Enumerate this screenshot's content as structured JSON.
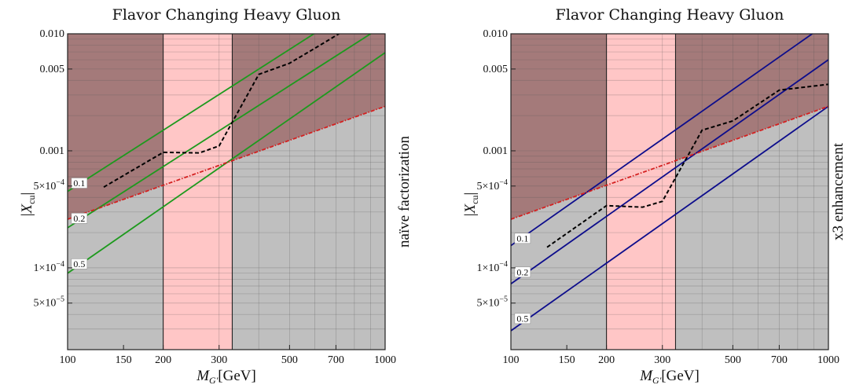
{
  "chart_data": [
    {
      "type": "line",
      "title": "Flavor Changing Heavy Gluon",
      "xlabel": "M_G'[GeV]",
      "ylabel": "|X_cu|",
      "side_label": "naïve factorization",
      "xscale": "log",
      "yscale": "log",
      "xlim": [
        100,
        1000
      ],
      "ylim": [
        2e-05,
        0.01
      ],
      "grid": true,
      "x_ticks": [
        {
          "value": 100,
          "label": "100"
        },
        {
          "value": 150,
          "label": "150"
        },
        {
          "value": 200,
          "label": "200"
        },
        {
          "value": 300,
          "label": "300"
        },
        {
          "value": 500,
          "label": "500"
        },
        {
          "value": 700,
          "label": "700"
        },
        {
          "value": 1000,
          "label": "1000"
        }
      ],
      "y_ticks": [
        {
          "value": 5e-05,
          "base": "5×10",
          "exp": "−5"
        },
        {
          "value": 0.0001,
          "base": "1×10",
          "exp": "−4"
        },
        {
          "value": 0.0005,
          "base": "5×10",
          "exp": "−4"
        },
        {
          "value": 0.001,
          "base": "0.001",
          "exp": ""
        },
        {
          "value": 0.005,
          "base": "0.005",
          "exp": ""
        },
        {
          "value": 0.01,
          "base": "0.010",
          "exp": ""
        }
      ],
      "excluded_above_line": {
        "x": [
          100,
          1000
        ],
        "y": [
          0.00026,
          0.0024
        ],
        "color": "#a47a7a"
      },
      "vertical_band": {
        "x": [
          200,
          330
        ],
        "color": "#ffc6c6"
      },
      "grey_regions": {
        "x_left": 200,
        "x_right": 330,
        "color": "#bfbfbf"
      },
      "red_line": {
        "x": [
          100,
          1000
        ],
        "y": [
          0.00026,
          0.0024
        ],
        "color": "#d42020"
      },
      "dashed_curve": {
        "x": [
          130,
          200,
          260,
          300,
          400,
          500,
          600,
          800
        ],
        "y": [
          0.00049,
          0.00097,
          0.00096,
          0.0011,
          0.0045,
          0.0056,
          0.0075,
          0.012
        ]
      },
      "lines_color": "#1d9a1d",
      "lines": [
        {
          "label": "0.1",
          "x": [
            100,
            1000
          ],
          "y": [
            0.00045,
            0.0245
          ],
          "label_x": 104,
          "label_y": 0.00051
        },
        {
          "label": "0.2",
          "x": [
            100,
            1000
          ],
          "y": [
            0.00022,
            0.012
          ],
          "label_x": 104,
          "label_y": 0.000255
        },
        {
          "label": "0.5",
          "x": [
            100,
            1000
          ],
          "y": [
            9e-05,
            0.0069
          ],
          "label_x": 104,
          "label_y": 0.000104
        }
      ]
    },
    {
      "type": "line",
      "title": "Flavor Changing Heavy Gluon",
      "xlabel": "M_G'[GeV]",
      "ylabel": "|X_cu|",
      "side_label": "x3 enhancement",
      "xscale": "log",
      "yscale": "log",
      "xlim": [
        100,
        1000
      ],
      "ylim": [
        2e-05,
        0.01
      ],
      "grid": true,
      "x_ticks": [
        {
          "value": 100,
          "label": "100"
        },
        {
          "value": 150,
          "label": "150"
        },
        {
          "value": 200,
          "label": "200"
        },
        {
          "value": 300,
          "label": "300"
        },
        {
          "value": 500,
          "label": "500"
        },
        {
          "value": 700,
          "label": "700"
        },
        {
          "value": 1000,
          "label": "1000"
        }
      ],
      "y_ticks": [
        {
          "value": 5e-05,
          "base": "5×10",
          "exp": "−5"
        },
        {
          "value": 0.0001,
          "base": "1×10",
          "exp": "−4"
        },
        {
          "value": 0.0005,
          "base": "5×10",
          "exp": "−4"
        },
        {
          "value": 0.001,
          "base": "0.001",
          "exp": ""
        },
        {
          "value": 0.005,
          "base": "0.005",
          "exp": ""
        },
        {
          "value": 0.01,
          "base": "0.010",
          "exp": ""
        }
      ],
      "excluded_above_line": {
        "x": [
          100,
          1000
        ],
        "y": [
          0.00026,
          0.0024
        ],
        "color": "#a47a7a"
      },
      "vertical_band": {
        "x": [
          200,
          330
        ],
        "color": "#ffc6c6"
      },
      "grey_regions": {
        "x_left": 200,
        "x_right": 330,
        "color": "#bfbfbf"
      },
      "red_line": {
        "x": [
          100,
          1000
        ],
        "y": [
          0.00026,
          0.0024
        ],
        "color": "#d42020"
      },
      "dashed_curve": {
        "x": [
          130,
          200,
          260,
          300,
          400,
          500,
          700,
          1000
        ],
        "y": [
          0.00015,
          0.00034,
          0.00033,
          0.00037,
          0.0015,
          0.0018,
          0.0033,
          0.0037
        ]
      },
      "lines_color": "#0d0d8c",
      "lines": [
        {
          "label": "0.1",
          "x": [
            100,
            1000
          ],
          "y": [
            0.000155,
            0.0125
          ],
          "label_x": 104,
          "label_y": 0.000172
        },
        {
          "label": "0.2",
          "x": [
            100,
            1000
          ],
          "y": [
            7.3e-05,
            0.006
          ],
          "label_x": 104,
          "label_y": 8.85e-05
        },
        {
          "label": "0.5",
          "x": [
            100,
            1000
          ],
          "y": [
            2.9e-05,
            0.0024
          ],
          "label_x": 104,
          "label_y": 3.55e-05
        }
      ]
    }
  ]
}
